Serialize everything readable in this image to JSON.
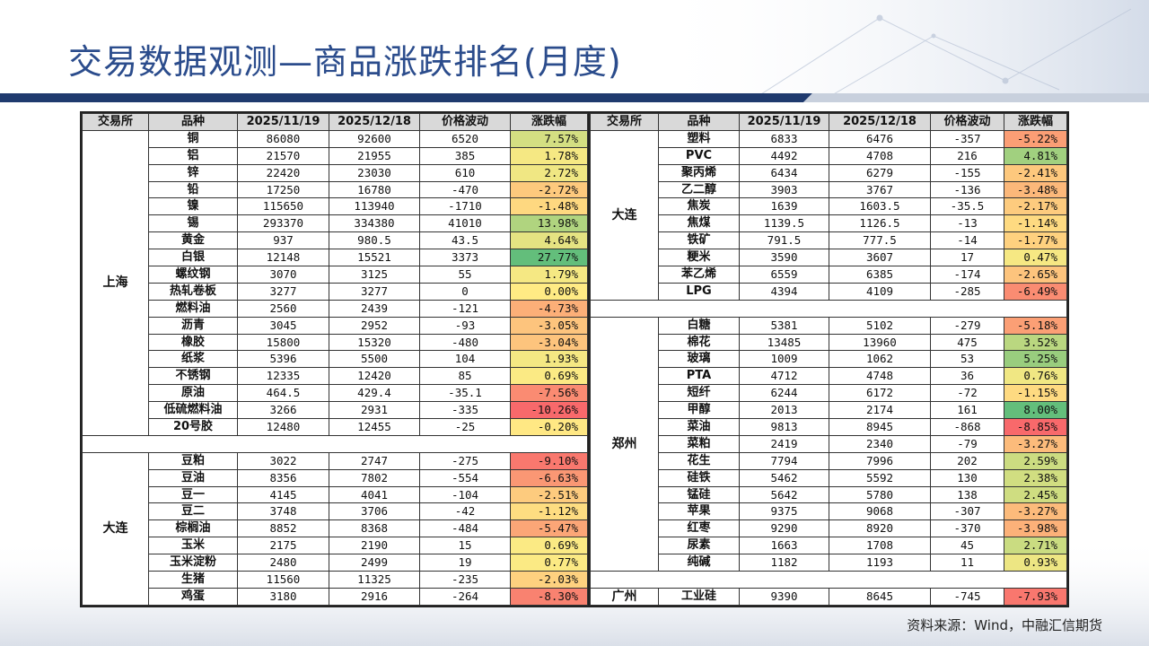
{
  "title": "交易数据观测—商品涨跌排名(月度)",
  "source": "资料来源：Wind，中融汇信期货",
  "headers": [
    "交易所",
    "品种",
    "2025/11/19",
    "2025/12/18",
    "价格波动",
    "涨跌幅"
  ],
  "left": [
    {
      "exchange": "上海",
      "rows": [
        {
          "name": "铜",
          "p1": "86080",
          "p2": "92600",
          "chg": "6520",
          "pct": "7.57%",
          "v": 7.57
        },
        {
          "name": "铝",
          "p1": "21570",
          "p2": "21955",
          "chg": "385",
          "pct": "1.78%",
          "v": 1.78
        },
        {
          "name": "锌",
          "p1": "22420",
          "p2": "23030",
          "chg": "610",
          "pct": "2.72%",
          "v": 2.72
        },
        {
          "name": "铅",
          "p1": "17250",
          "p2": "16780",
          "chg": "-470",
          "pct": "-2.72%",
          "v": -2.72
        },
        {
          "name": "镍",
          "p1": "115650",
          "p2": "113940",
          "chg": "-1710",
          "pct": "-1.48%",
          "v": -1.48
        },
        {
          "name": "锡",
          "p1": "293370",
          "p2": "334380",
          "chg": "41010",
          "pct": "13.98%",
          "v": 13.98
        },
        {
          "name": "黄金",
          "p1": "937",
          "p2": "980.5",
          "chg": "43.5",
          "pct": "4.64%",
          "v": 4.64
        },
        {
          "name": "白银",
          "p1": "12148",
          "p2": "15521",
          "chg": "3373",
          "pct": "27.77%",
          "v": 27.77
        },
        {
          "name": "螺纹钢",
          "p1": "3070",
          "p2": "3125",
          "chg": "55",
          "pct": "1.79%",
          "v": 1.79
        },
        {
          "name": "热轧卷板",
          "p1": "3277",
          "p2": "3277",
          "chg": "0",
          "pct": "0.00%",
          "v": 0
        },
        {
          "name": "燃料油",
          "p1": "2560",
          "p2": "2439",
          "chg": "-121",
          "pct": "-4.73%",
          "v": -4.73
        },
        {
          "name": "沥青",
          "p1": "3045",
          "p2": "2952",
          "chg": "-93",
          "pct": "-3.05%",
          "v": -3.05
        },
        {
          "name": "橡胶",
          "p1": "15800",
          "p2": "15320",
          "chg": "-480",
          "pct": "-3.04%",
          "v": -3.04
        },
        {
          "name": "纸浆",
          "p1": "5396",
          "p2": "5500",
          "chg": "104",
          "pct": "1.93%",
          "v": 1.93
        },
        {
          "name": "不锈钢",
          "p1": "12335",
          "p2": "12420",
          "chg": "85",
          "pct": "0.69%",
          "v": 0.69
        },
        {
          "name": "原油",
          "p1": "464.5",
          "p2": "429.4",
          "chg": "-35.1",
          "pct": "-7.56%",
          "v": -7.56
        },
        {
          "name": "低硫燃料油",
          "p1": "3266",
          "p2": "2931",
          "chg": "-335",
          "pct": "-10.26%",
          "v": -10.26
        },
        {
          "name": "20号胶",
          "p1": "12480",
          "p2": "12455",
          "chg": "-25",
          "pct": "-0.20%",
          "v": -0.2
        }
      ]
    },
    {
      "exchange": "大连",
      "rows": [
        {
          "name": "豆粕",
          "p1": "3022",
          "p2": "2747",
          "chg": "-275",
          "pct": "-9.10%",
          "v": -9.1
        },
        {
          "name": "豆油",
          "p1": "8356",
          "p2": "7802",
          "chg": "-554",
          "pct": "-6.63%",
          "v": -6.63
        },
        {
          "name": "豆一",
          "p1": "4145",
          "p2": "4041",
          "chg": "-104",
          "pct": "-2.51%",
          "v": -2.51
        },
        {
          "name": "豆二",
          "p1": "3748",
          "p2": "3706",
          "chg": "-42",
          "pct": "-1.12%",
          "v": -1.12
        },
        {
          "name": "棕榈油",
          "p1": "8852",
          "p2": "8368",
          "chg": "-484",
          "pct": "-5.47%",
          "v": -5.47
        },
        {
          "name": "玉米",
          "p1": "2175",
          "p2": "2190",
          "chg": "15",
          "pct": "0.69%",
          "v": 0.69
        },
        {
          "name": "玉米淀粉",
          "p1": "2480",
          "p2": "2499",
          "chg": "19",
          "pct": "0.77%",
          "v": 0.77
        },
        {
          "name": "生猪",
          "p1": "11560",
          "p2": "11325",
          "chg": "-235",
          "pct": "-2.03%",
          "v": -2.03
        },
        {
          "name": "鸡蛋",
          "p1": "3180",
          "p2": "2916",
          "chg": "-264",
          "pct": "-8.30%",
          "v": -8.3
        }
      ]
    }
  ],
  "right": [
    {
      "exchange": "大连",
      "rows": [
        {
          "name": "塑料",
          "p1": "6833",
          "p2": "6476",
          "chg": "-357",
          "pct": "-5.22%",
          "v": -5.22
        },
        {
          "name": "PVC",
          "p1": "4492",
          "p2": "4708",
          "chg": "216",
          "pct": "4.81%",
          "v": 4.81
        },
        {
          "name": "聚丙烯",
          "p1": "6434",
          "p2": "6279",
          "chg": "-155",
          "pct": "-2.41%",
          "v": -2.41
        },
        {
          "name": "乙二醇",
          "p1": "3903",
          "p2": "3767",
          "chg": "-136",
          "pct": "-3.48%",
          "v": -3.48
        },
        {
          "name": "焦炭",
          "p1": "1639",
          "p2": "1603.5",
          "chg": "-35.5",
          "pct": "-2.17%",
          "v": -2.17
        },
        {
          "name": "焦煤",
          "p1": "1139.5",
          "p2": "1126.5",
          "chg": "-13",
          "pct": "-1.14%",
          "v": -1.14
        },
        {
          "name": "铁矿",
          "p1": "791.5",
          "p2": "777.5",
          "chg": "-14",
          "pct": "-1.77%",
          "v": -1.77
        },
        {
          "name": "粳米",
          "p1": "3590",
          "p2": "3607",
          "chg": "17",
          "pct": "0.47%",
          "v": 0.47
        },
        {
          "name": "苯乙烯",
          "p1": "6559",
          "p2": "6385",
          "chg": "-174",
          "pct": "-2.65%",
          "v": -2.65
        },
        {
          "name": "LPG",
          "p1": "4394",
          "p2": "4109",
          "chg": "-285",
          "pct": "-6.49%",
          "v": -6.49
        }
      ]
    },
    {
      "exchange": "郑州",
      "rows": [
        {
          "name": "白糖",
          "p1": "5381",
          "p2": "5102",
          "chg": "-279",
          "pct": "-5.18%",
          "v": -5.18
        },
        {
          "name": "棉花",
          "p1": "13485",
          "p2": "13960",
          "chg": "475",
          "pct": "3.52%",
          "v": 3.52
        },
        {
          "name": "玻璃",
          "p1": "1009",
          "p2": "1062",
          "chg": "53",
          "pct": "5.25%",
          "v": 5.25
        },
        {
          "name": "PTA",
          "p1": "4712",
          "p2": "4748",
          "chg": "36",
          "pct": "0.76%",
          "v": 0.76
        },
        {
          "name": "短纤",
          "p1": "6244",
          "p2": "6172",
          "chg": "-72",
          "pct": "-1.15%",
          "v": -1.15
        },
        {
          "name": "甲醇",
          "p1": "2013",
          "p2": "2174",
          "chg": "161",
          "pct": "8.00%",
          "v": 8.0
        },
        {
          "name": "菜油",
          "p1": "9813",
          "p2": "8945",
          "chg": "-868",
          "pct": "-8.85%",
          "v": -8.85
        },
        {
          "name": "菜粕",
          "p1": "2419",
          "p2": "2340",
          "chg": "-79",
          "pct": "-3.27%",
          "v": -3.27
        },
        {
          "name": "花生",
          "p1": "7794",
          "p2": "7996",
          "chg": "202",
          "pct": "2.59%",
          "v": 2.59
        },
        {
          "name": "硅铁",
          "p1": "5462",
          "p2": "5592",
          "chg": "130",
          "pct": "2.38%",
          "v": 2.38
        },
        {
          "name": "锰硅",
          "p1": "5642",
          "p2": "5780",
          "chg": "138",
          "pct": "2.45%",
          "v": 2.45
        },
        {
          "name": "苹果",
          "p1": "9375",
          "p2": "9068",
          "chg": "-307",
          "pct": "-3.27%",
          "v": -3.27
        },
        {
          "name": "红枣",
          "p1": "9290",
          "p2": "8920",
          "chg": "-370",
          "pct": "-3.98%",
          "v": -3.98
        },
        {
          "name": "尿素",
          "p1": "1663",
          "p2": "1708",
          "chg": "45",
          "pct": "2.71%",
          "v": 2.71
        },
        {
          "name": "纯碱",
          "p1": "1182",
          "p2": "1193",
          "chg": "11",
          "pct": "0.93%",
          "v": 0.93
        }
      ]
    },
    {
      "exchange": "广州",
      "rows": [
        {
          "name": "工业硅",
          "p1": "9390",
          "p2": "8645",
          "chg": "-745",
          "pct": "-7.93%",
          "v": -7.93
        }
      ]
    }
  ],
  "colors": {
    "title": "#2b4c8c",
    "header_bg": "#d9d9d9",
    "scale_min": "#f8696b",
    "scale_mid": "#ffeb84",
    "scale_max": "#63be7b",
    "band_dark": "#1f3a6e"
  }
}
